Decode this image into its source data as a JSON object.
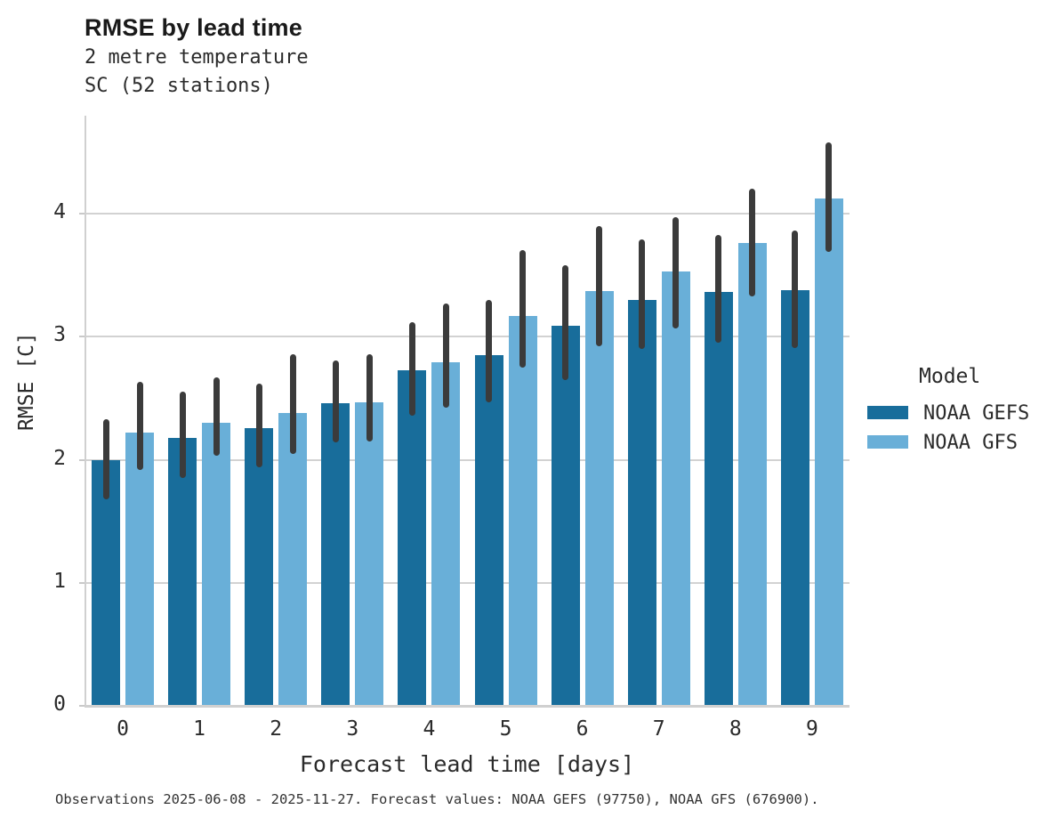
{
  "chart_data": {
    "type": "bar",
    "title": "RMSE by lead time",
    "subtitle": [
      "2 metre temperature",
      "SC (52 stations)"
    ],
    "xlabel": "Forecast lead time [days]",
    "ylabel": "RMSE [C]",
    "legend_title": "Model",
    "legend_position": "right",
    "grid": true,
    "categories": [
      "0",
      "1",
      "2",
      "3",
      "4",
      "5",
      "6",
      "7",
      "8",
      "9"
    ],
    "yticks": [
      0,
      1,
      2,
      3,
      4
    ],
    "ylim": [
      0,
      4.8
    ],
    "series": [
      {
        "name": "NOAA GEFS",
        "color": "#186d9b",
        "values": [
          2.0,
          2.18,
          2.26,
          2.46,
          2.73,
          2.85,
          3.09,
          3.3,
          3.36,
          3.38
        ],
        "err_lo": [
          1.68,
          1.85,
          1.94,
          2.14,
          2.36,
          2.47,
          2.65,
          2.9,
          2.95,
          2.91
        ],
        "err_hi": [
          2.33,
          2.55,
          2.62,
          2.81,
          3.12,
          3.3,
          3.58,
          3.79,
          3.83,
          3.86
        ]
      },
      {
        "name": "NOAA GFS",
        "color": "#69afd8",
        "values": [
          2.22,
          2.3,
          2.38,
          2.47,
          2.79,
          3.17,
          3.37,
          3.53,
          3.76,
          4.12
        ],
        "err_lo": [
          1.92,
          2.03,
          2.05,
          2.15,
          2.42,
          2.75,
          2.92,
          3.07,
          3.33,
          3.69
        ],
        "err_hi": [
          2.63,
          2.67,
          2.86,
          2.86,
          3.27,
          3.7,
          3.9,
          3.97,
          4.2,
          4.58
        ]
      }
    ],
    "error_bar_color": "#3b3b3b",
    "gridline_color": "#d2d2d2",
    "caption": "Observations 2025-06-08 - 2025-11-27. Forecast values: NOAA GEFS (97750), NOAA GFS (676900)."
  }
}
